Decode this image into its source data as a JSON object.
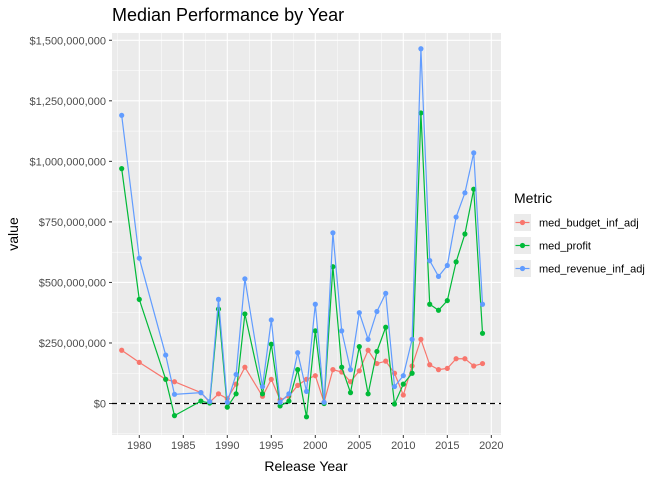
{
  "chart_data": {
    "type": "line",
    "title": "Median Performance by Year",
    "xlabel": "Release Year",
    "ylabel": "value",
    "x_ticks": [
      1980,
      1985,
      1990,
      1995,
      2000,
      2005,
      2010,
      2015,
      2020
    ],
    "y_ticks": [
      0,
      250000000,
      500000000,
      750000000,
      1000000000,
      1250000000,
      1500000000
    ],
    "y_tick_labels": [
      "$0",
      "$250,000,000",
      "$500,000,000",
      "$750,000,000",
      "$1,000,000,000",
      "$1,250,000,000",
      "$1,500,000,000"
    ],
    "xlim": [
      1976.9,
      2021.1
    ],
    "ylim": [
      -130000000,
      1530000000
    ],
    "grid": true,
    "background": "#ebebeb",
    "reference_line": {
      "y": 0,
      "style": "dashed",
      "color": "#000000"
    },
    "legend": {
      "title": "Metric",
      "position": "right"
    },
    "series": [
      {
        "name": "med_budget_inf_adj",
        "color": "#F8766D",
        "x": [
          1978,
          1980,
          1983,
          1984,
          1987,
          1988,
          1989,
          1990,
          1991,
          1992,
          1994,
          1995,
          1996,
          1997,
          1998,
          1999,
          2000,
          2001,
          2002,
          2003,
          2004,
          2005,
          2006,
          2007,
          2008,
          2009,
          2010,
          2011,
          2012,
          2013,
          2014,
          2015,
          2016,
          2017,
          2018,
          2019
        ],
        "y": [
          220000000,
          170000000,
          100000000,
          90000000,
          45000000,
          5000000,
          40000000,
          20000000,
          80000000,
          150000000,
          30000000,
          100000000,
          15000000,
          30000000,
          75000000,
          100000000,
          115000000,
          5000000,
          140000000,
          130000000,
          90000000,
          135000000,
          220000000,
          165000000,
          175000000,
          125000000,
          35000000,
          155000000,
          265000000,
          160000000,
          140000000,
          145000000,
          185000000,
          185000000,
          155000000,
          165000000
        ]
      },
      {
        "name": "med_profit",
        "color": "#00BA38",
        "x": [
          1978,
          1980,
          1983,
          1984,
          1987,
          1988,
          1989,
          1990,
          1991,
          1992,
          1994,
          1995,
          1996,
          1997,
          1998,
          1999,
          2000,
          2001,
          2002,
          2003,
          2004,
          2005,
          2006,
          2007,
          2008,
          2009,
          2010,
          2011,
          2012,
          2013,
          2014,
          2015,
          2016,
          2017,
          2018,
          2019
        ],
        "y": [
          970000000,
          430000000,
          100000000,
          -50000000,
          10000000,
          2000000,
          390000000,
          -15000000,
          40000000,
          370000000,
          40000000,
          245000000,
          -10000000,
          10000000,
          140000000,
          -55000000,
          300000000,
          0,
          565000000,
          150000000,
          45000000,
          235000000,
          40000000,
          215000000,
          315000000,
          -2000000,
          80000000,
          125000000,
          1200000000,
          410000000,
          385000000,
          425000000,
          585000000,
          700000000,
          885000000,
          290000000
        ]
      },
      {
        "name": "med_revenue_inf_adj",
        "color": "#619CFF",
        "x": [
          1978,
          1980,
          1983,
          1984,
          1987,
          1988,
          1989,
          1990,
          1991,
          1992,
          1994,
          1995,
          1996,
          1997,
          1998,
          1999,
          2000,
          2001,
          2002,
          2003,
          2004,
          2005,
          2006,
          2007,
          2008,
          2009,
          2010,
          2011,
          2012,
          2013,
          2014,
          2015,
          2016,
          2017,
          2018,
          2019
        ],
        "y": [
          1190000000,
          600000000,
          200000000,
          38000000,
          45000000,
          8000000,
          430000000,
          5000000,
          120000000,
          515000000,
          70000000,
          345000000,
          5000000,
          40000000,
          210000000,
          50000000,
          410000000,
          5000000,
          705000000,
          300000000,
          140000000,
          375000000,
          265000000,
          380000000,
          455000000,
          70000000,
          115000000,
          265000000,
          1465000000,
          590000000,
          525000000,
          570000000,
          770000000,
          870000000,
          1035000000,
          410000000
        ]
      }
    ]
  }
}
